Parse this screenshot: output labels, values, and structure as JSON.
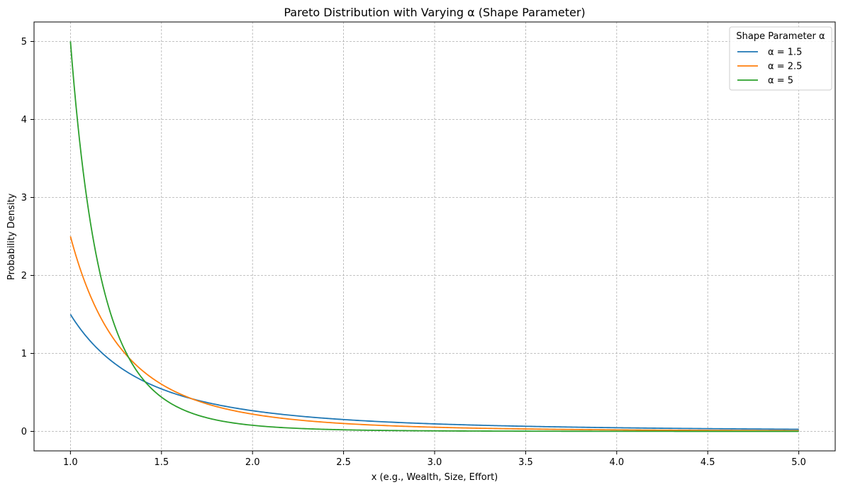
{
  "chart_data": {
    "type": "line",
    "title": "Pareto Distribution with Varying α (Shape Parameter)",
    "xlabel": "x (e.g., Wealth, Size, Effort)",
    "ylabel": "Probability Density",
    "xlim": [
      0.8,
      5.2
    ],
    "ylim": [
      -0.25,
      5.25
    ],
    "xticks": [
      1.0,
      1.5,
      2.0,
      2.5,
      3.0,
      3.5,
      4.0,
      4.5,
      5.0
    ],
    "xtick_labels": [
      "1.0",
      "1.5",
      "2.0",
      "2.5",
      "3.0",
      "3.5",
      "4.0",
      "4.5",
      "5.0"
    ],
    "yticks": [
      0,
      1,
      2,
      3,
      4,
      5
    ],
    "ytick_labels": [
      "0",
      "1",
      "2",
      "3",
      "4",
      "5"
    ],
    "grid": true,
    "legend": {
      "title": "Shape Parameter α",
      "placement": "top-right"
    },
    "x_min": 1.0,
    "x_max": 5.0,
    "series": [
      {
        "name": "α = 1.5",
        "alpha": 1.5,
        "color": "#1f77b4"
      },
      {
        "name": "α = 2.5",
        "alpha": 2.5,
        "color": "#ff7f0e"
      },
      {
        "name": "α = 5",
        "alpha": 5,
        "color": "#2ca02c"
      }
    ]
  }
}
